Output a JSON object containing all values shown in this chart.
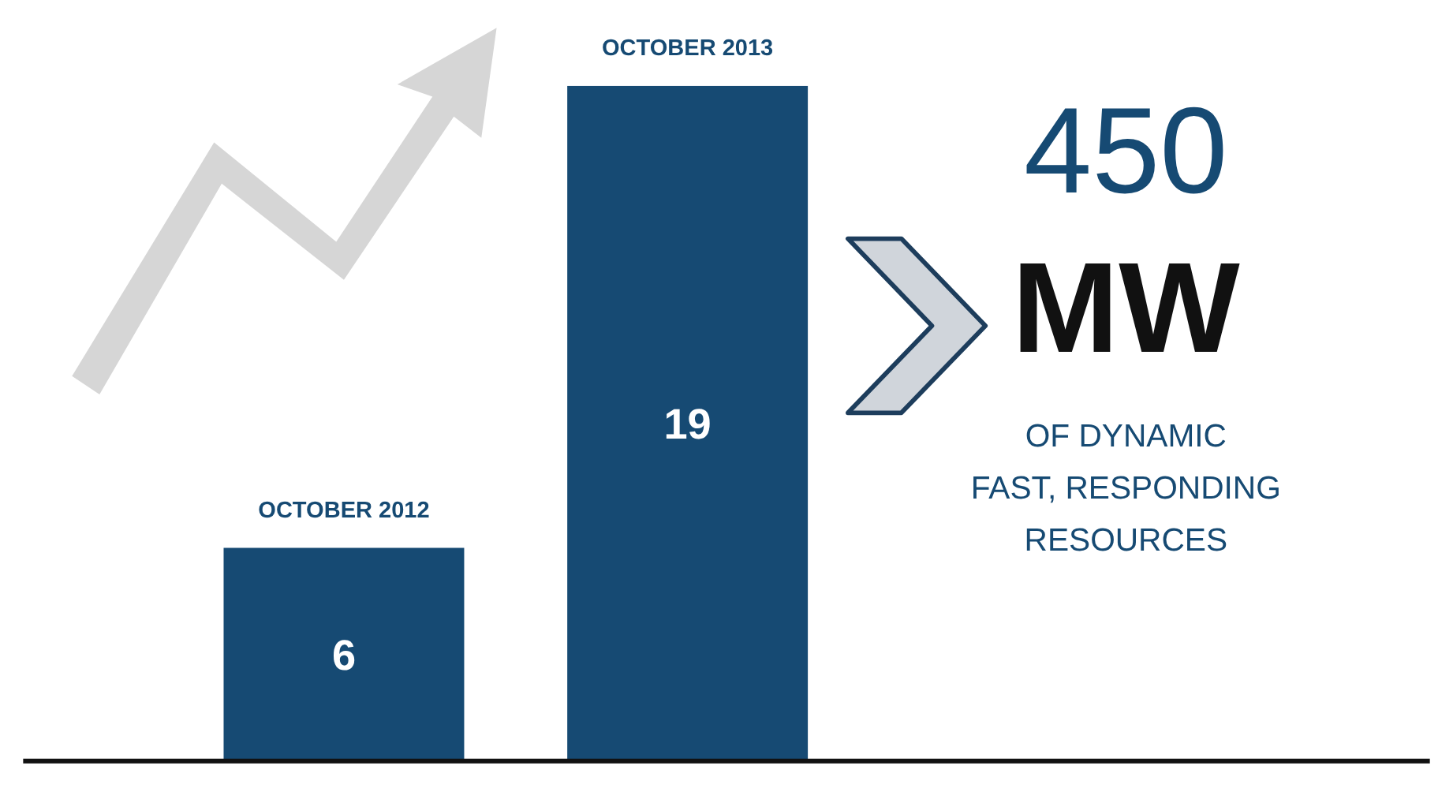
{
  "chart_data": {
    "type": "bar",
    "categories": [
      "OCTOBER 2012",
      "OCTOBER 2013"
    ],
    "values": [
      6,
      19
    ],
    "color": "#164a73",
    "data_labels": true,
    "annotations": [
      "450",
      "MW",
      "OF DYNAMIC",
      "FAST, RESPONDING",
      "RESOURCES"
    ]
  }
}
